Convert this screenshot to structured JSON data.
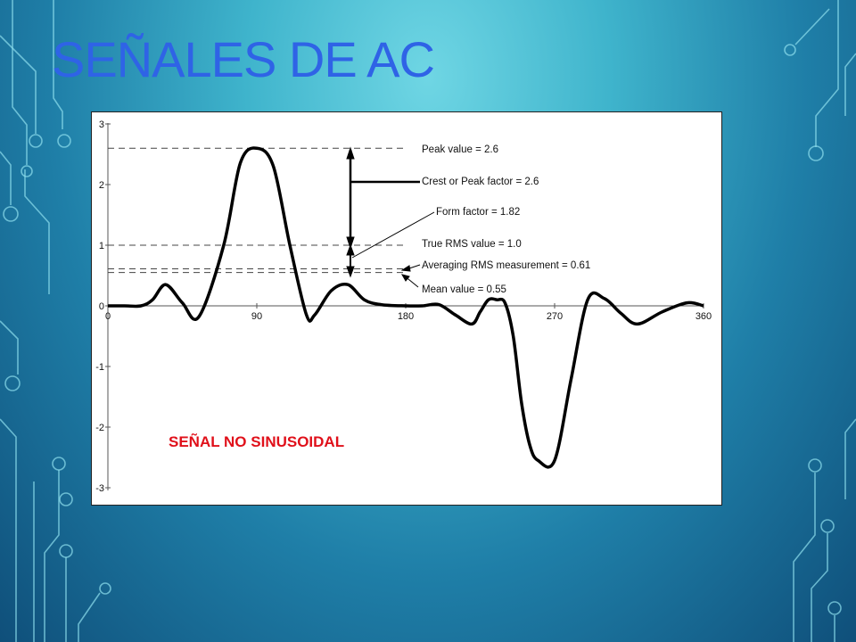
{
  "slide": {
    "title": "SEÑALES DE AC"
  },
  "colors": {
    "title": "#2f63e6",
    "note": "#e0101a",
    "curve": "#000000"
  },
  "chart_data": {
    "type": "line",
    "title": "",
    "xlabel": "",
    "ylabel": "",
    "xlim": [
      0,
      360
    ],
    "ylim": [
      -3,
      3
    ],
    "x_ticks": [
      0,
      90,
      180,
      270,
      360
    ],
    "y_ticks": [
      3,
      2,
      1,
      0,
      -1,
      -2,
      -3
    ],
    "grid": false,
    "legend": "none",
    "series": [
      {
        "x": [
          0,
          10,
          20,
          27,
          35,
          45,
          55,
          70,
          80,
          90,
          100,
          110,
          120,
          125,
          135,
          145,
          155,
          165,
          180,
          190,
          200,
          210,
          220,
          225,
          230,
          235,
          240,
          245,
          250,
          255,
          260,
          270,
          280,
          290,
          300,
          310,
          320,
          335,
          350,
          360
        ],
        "y": [
          0,
          0,
          0,
          0.1,
          0.35,
          0.05,
          -0.18,
          1.0,
          2.35,
          2.6,
          2.3,
          1.0,
          -0.15,
          -0.15,
          0.25,
          0.35,
          0.1,
          0.02,
          0,
          0,
          0.02,
          -0.15,
          -0.3,
          -0.1,
          0.1,
          0.1,
          0.05,
          -0.5,
          -1.6,
          -2.3,
          -2.55,
          -2.55,
          -1.2,
          0.1,
          0.12,
          -0.12,
          -0.3,
          -0.1,
          0.05,
          0
        ]
      }
    ],
    "reference_lines": [
      {
        "label": "Peak value = 2.6",
        "y": 2.6
      },
      {
        "label": "True RMS value = 1.0",
        "y": 1.0
      },
      {
        "label": "Averaging RMS measurement = 0.61",
        "y": 0.61
      },
      {
        "label": "Mean value = 0.55",
        "y": 0.55
      }
    ],
    "annotations": [
      {
        "label": "Crest or Peak factor = 2.6",
        "spans": [
          1.0,
          2.6
        ]
      },
      {
        "label": "Form factor = 1.82",
        "spans": [
          0.55,
          1.0
        ]
      }
    ],
    "note": "SEÑAL NO SINUSOIDAL"
  }
}
